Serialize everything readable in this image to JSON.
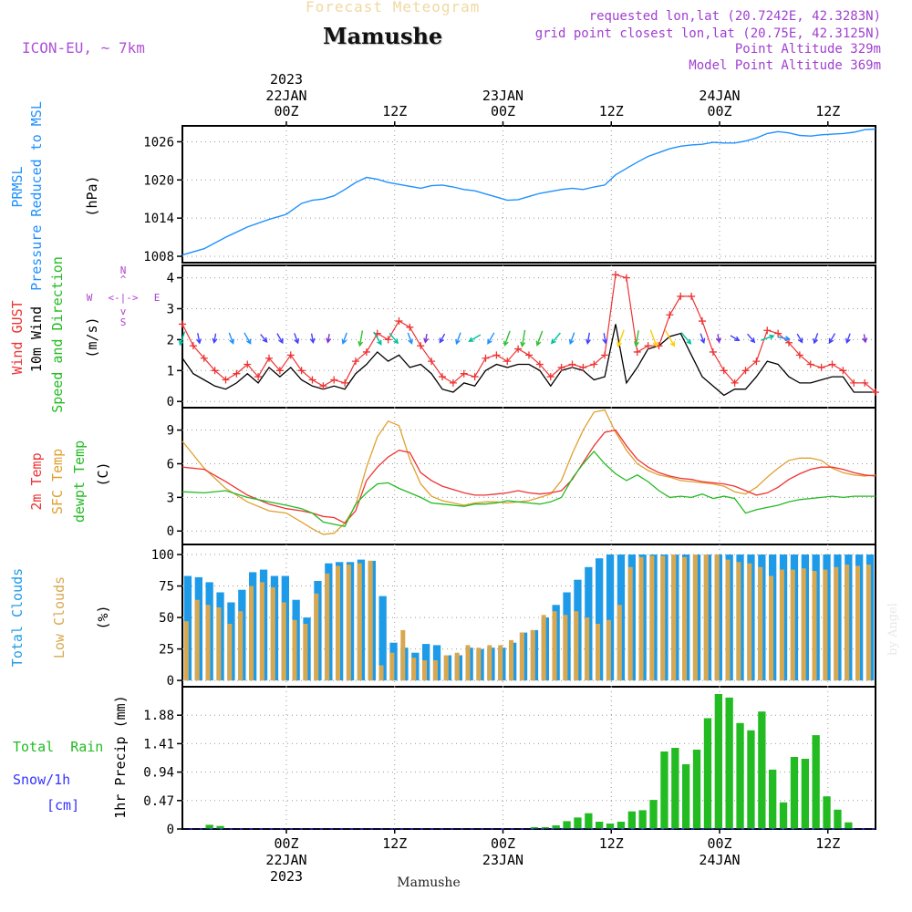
{
  "header": {
    "subtitle": "Forecast Meteogram",
    "location": "Mamushe",
    "model": "ICON-EU, ~ 7km",
    "requested": "requested lon,lat (20.7242E, 42.3283N)",
    "grid_point": "grid point closest lon,lat (20.75E, 42.3125N)",
    "point_altitude": "Point Altitude 329m",
    "model_altitude": "Model Point Altitude 369m",
    "credit": "by Angel"
  },
  "colors": {
    "pressure": "#1e90ff",
    "gust": "#ee3333",
    "wind": "#000000",
    "temp2m": "#ee3333",
    "sfc": "#e0a030",
    "dewpt": "#22bb22",
    "total_clouds": "#1e9be8",
    "low_clouds": "#d8a850",
    "rain": "#22bb22",
    "snow": "#3333ff",
    "purple": "#b040d0"
  },
  "panel_labels": {
    "pressure": [
      "PRMSL",
      "Pressure Reduced to MSL"
    ],
    "pressure_unit": "(hPa)",
    "wind": [
      "Wind GUST",
      "10m Wind",
      "Speed and Direction"
    ],
    "wind_unit": "(m/s)",
    "compass": {
      "n": "N",
      "s": "S",
      "w": "W",
      "e": "E",
      "arrow": "<-|->",
      "v_top": "^",
      "v_mid": "|",
      "v_bot": "v"
    },
    "temp": [
      "2m Temp",
      "SFC Temp",
      "dewpt Temp"
    ],
    "temp_unit": "(C)",
    "clouds": [
      "Total Clouds",
      "Low Clouds"
    ],
    "clouds_unit": "(%)",
    "precip_y": "1hr Precip (mm)",
    "total_rain": "Total  Rain",
    "snow": "Snow/1h",
    "snow_unit": "[cm]"
  },
  "chart_data": {
    "type": "line",
    "title": "Forecast Meteogram",
    "subtitle": "Mamushe",
    "xlabel": "Mamushe",
    "x_unit": "hours from 2023-01-21 14Z",
    "x_range": [
      0,
      64
    ],
    "top_axis": {
      "year": {
        "x": 9.6,
        "label": "2023"
      },
      "dates": [
        {
          "x": 9.6,
          "label": "22JAN"
        },
        {
          "x": 29.6,
          "label": "23JAN"
        },
        {
          "x": 49.6,
          "label": "24JAN"
        }
      ],
      "ticks": [
        {
          "x": 9.6,
          "label": "00Z"
        },
        {
          "x": 19.6,
          "label": "12Z"
        },
        {
          "x": 29.6,
          "label": "00Z"
        },
        {
          "x": 39.6,
          "label": "12Z"
        },
        {
          "x": 49.6,
          "label": "00Z"
        },
        {
          "x": 59.6,
          "label": "12Z"
        }
      ]
    },
    "bottom_axis": {
      "ticks": [
        {
          "x": 9.6,
          "label": "00Z"
        },
        {
          "x": 19.6,
          "label": "12Z"
        },
        {
          "x": 29.6,
          "label": "00Z"
        },
        {
          "x": 39.6,
          "label": "12Z"
        },
        {
          "x": 49.6,
          "label": "00Z"
        },
        {
          "x": 59.6,
          "label": "12Z"
        }
      ],
      "dates": [
        {
          "x": 9.6,
          "label": "22JAN"
        },
        {
          "x": 29.6,
          "label": "23JAN"
        },
        {
          "x": 49.6,
          "label": "24JAN"
        }
      ],
      "year": {
        "x": 9.6,
        "label": "2023"
      }
    },
    "pressure": {
      "name": "PRMSL",
      "ylim": [
        1007,
        1028.5
      ],
      "yticks": [
        1008,
        1014,
        1020,
        1026
      ],
      "x": [
        0,
        2,
        4,
        6,
        8,
        9.6,
        11,
        12,
        13,
        14,
        15,
        16,
        17,
        18,
        19,
        20,
        21,
        22,
        23,
        24,
        25,
        26,
        27,
        28,
        29,
        30,
        31,
        32,
        33,
        34,
        35,
        36,
        37,
        38,
        39,
        40,
        41,
        42,
        43,
        44,
        45,
        46,
        47,
        48,
        49,
        50,
        51,
        52,
        53,
        54,
        55,
        56,
        57,
        58,
        59,
        60,
        61,
        62,
        63,
        64
      ],
      "values": [
        1008.2,
        1009.2,
        1011,
        1012.6,
        1013.8,
        1014.6,
        1016.3,
        1016.8,
        1017,
        1017.5,
        1018.5,
        1019.6,
        1020.4,
        1020.1,
        1019.6,
        1019.3,
        1019,
        1018.7,
        1019.1,
        1019.2,
        1018.9,
        1018.5,
        1018.3,
        1017.8,
        1017.3,
        1016.8,
        1016.9,
        1017.4,
        1017.9,
        1018.2,
        1018.5,
        1018.7,
        1018.5,
        1018.9,
        1019.2,
        1020.8,
        1021.8,
        1022.8,
        1023.7,
        1024.3,
        1024.9,
        1025.3,
        1025.5,
        1025.6,
        1025.9,
        1025.8,
        1025.8,
        1026.1,
        1026.6,
        1027.3,
        1027.6,
        1027.4,
        1027.0,
        1026.9,
        1027.1,
        1027.2,
        1027.3,
        1027.5,
        1027.9,
        1028.0
      ]
    },
    "wind": {
      "ylim": [
        -0.2,
        4.4
      ],
      "yticks": [
        0,
        1,
        2,
        3,
        4
      ],
      "gust": {
        "name": "Wind GUST",
        "x": [
          0,
          1,
          2,
          3,
          4,
          5,
          6,
          7,
          8,
          9,
          10,
          11,
          12,
          13,
          14,
          15,
          16,
          17,
          18,
          19,
          20,
          21,
          22,
          23,
          24,
          25,
          26,
          27,
          28,
          29,
          30,
          31,
          32,
          33,
          34,
          35,
          36,
          37,
          38,
          39,
          40,
          41,
          42,
          43,
          44,
          45,
          46,
          47,
          48,
          49,
          50,
          51,
          52,
          53,
          54,
          55,
          56,
          57,
          58,
          59,
          60,
          61,
          62,
          63,
          64
        ],
        "values": [
          2.5,
          1.8,
          1.4,
          1.0,
          0.7,
          0.9,
          1.2,
          0.8,
          1.4,
          1.0,
          1.5,
          1.0,
          0.7,
          0.5,
          0.7,
          0.6,
          1.3,
          1.6,
          2.2,
          2.0,
          2.6,
          2.4,
          1.8,
          1.3,
          0.8,
          0.6,
          0.9,
          0.8,
          1.4,
          1.5,
          1.3,
          1.7,
          1.5,
          1.2,
          0.8,
          1.1,
          1.2,
          1.1,
          1.2,
          1.5,
          4.1,
          4.0,
          1.6,
          1.8,
          1.8,
          2.8,
          3.4,
          3.4,
          2.6,
          1.6,
          1.0,
          0.6,
          1.0,
          1.3,
          2.3,
          2.2,
          1.9,
          1.5,
          1.2,
          1.1,
          1.2,
          1.0,
          0.6,
          0.6,
          0.3
        ]
      },
      "speed": {
        "name": "10m Wind",
        "x": [
          0,
          1,
          2,
          3,
          4,
          5,
          6,
          7,
          8,
          9,
          10,
          11,
          12,
          13,
          14,
          15,
          16,
          17,
          18,
          19,
          20,
          21,
          22,
          23,
          24,
          25,
          26,
          27,
          28,
          29,
          30,
          31,
          32,
          33,
          34,
          35,
          36,
          37,
          38,
          39,
          40,
          41,
          42,
          43,
          44,
          45,
          46,
          47,
          48,
          49,
          50,
          51,
          52,
          53,
          54,
          55,
          56,
          57,
          58,
          59,
          60,
          61,
          62,
          63,
          64
        ],
        "values": [
          1.4,
          0.9,
          0.7,
          0.5,
          0.4,
          0.6,
          0.9,
          0.6,
          1.1,
          0.8,
          1.1,
          0.7,
          0.5,
          0.4,
          0.5,
          0.4,
          0.9,
          1.2,
          1.6,
          1.3,
          1.5,
          1.1,
          1.2,
          0.9,
          0.4,
          0.3,
          0.6,
          0.5,
          1.0,
          1.2,
          1.1,
          1.2,
          1.2,
          1.0,
          0.5,
          1.0,
          1.1,
          1.0,
          0.7,
          0.8,
          2.5,
          0.6,
          1.1,
          1.7,
          1.8,
          2.1,
          2.2,
          1.5,
          0.8,
          0.5,
          0.2,
          0.4,
          0.4,
          0.8,
          1.3,
          1.2,
          0.8,
          0.6,
          0.6,
          0.7,
          0.8,
          0.8,
          0.3,
          0.3,
          0.3
        ]
      },
      "arrows": {
        "name": "Speed and Direction",
        "x": [
          0,
          1.5,
          3,
          4.5,
          6,
          7.5,
          9,
          10.5,
          12,
          13.5,
          15,
          16.5,
          18,
          19.5,
          21,
          22.5,
          24,
          25.5,
          27,
          28.5,
          30,
          31.5,
          33,
          34.5,
          36,
          37.5,
          39,
          40.5,
          42,
          43.5,
          45,
          46.5,
          48,
          49.5,
          51,
          52.5,
          54,
          55.5,
          57,
          58.5,
          60,
          61.5,
          63
        ],
        "dir_deg": [
          20,
          350,
          10,
          340,
          330,
          320,
          330,
          340,
          350,
          10,
          20,
          10,
          330,
          320,
          340,
          10,
          30,
          20,
          60,
          30,
          20,
          10,
          20,
          40,
          20,
          10,
          350,
          20,
          10,
          340,
          330,
          320,
          340,
          350,
          300,
          320,
          250,
          280,
          330,
          20,
          30,
          20,
          350
        ],
        "speed": [
          1.4,
          0.7,
          0.5,
          0.9,
          1.1,
          0.6,
          0.8,
          0.7,
          0.5,
          0.4,
          0.9,
          1.6,
          1.5,
          1.2,
          0.9,
          0.4,
          0.6,
          1.0,
          1.2,
          1.1,
          1.6,
          1.8,
          1.6,
          1.3,
          1.0,
          0.8,
          0.7,
          2.0,
          1.7,
          2.0,
          2.1,
          1.5,
          0.6,
          0.3,
          0.6,
          0.8,
          1.3,
          1.0,
          0.6,
          0.7,
          0.8,
          0.6,
          0.3
        ]
      }
    },
    "temperature": {
      "ylim": [
        -1.2,
        11
      ],
      "yticks": [
        0,
        3,
        6,
        9
      ],
      "x": [
        0,
        2,
        4,
        6,
        8,
        9.6,
        11,
        12,
        13,
        14,
        15,
        16,
        17,
        18,
        19,
        20,
        21,
        22,
        23,
        24,
        25,
        26,
        27,
        28,
        29,
        30,
        31,
        32,
        33,
        34,
        35,
        36,
        37,
        38,
        39,
        40,
        41,
        42,
        43,
        44,
        45,
        46,
        47,
        48,
        49,
        50,
        51,
        52,
        53,
        54,
        55,
        56,
        57,
        58,
        59,
        60,
        61,
        62,
        63,
        64
      ],
      "temp2m": [
        5.7,
        5.5,
        4.4,
        3.2,
        2.4,
        2.0,
        1.8,
        1.6,
        1.3,
        1.2,
        0.7,
        1.8,
        4.5,
        5.7,
        6.6,
        7.2,
        7.0,
        5.2,
        4.5,
        4.0,
        3.7,
        3.4,
        3.2,
        3.2,
        3.3,
        3.4,
        3.6,
        3.4,
        3.3,
        3.4,
        3.6,
        4.6,
        6.1,
        7.6,
        8.8,
        9.0,
        7.6,
        6.4,
        5.7,
        5.2,
        4.9,
        4.7,
        4.6,
        4.4,
        4.3,
        4.2,
        4.0,
        3.6,
        3.2,
        3.4,
        3.9,
        4.6,
        5.1,
        5.5,
        5.7,
        5.7,
        5.5,
        5.2,
        5.0,
        4.9
      ],
      "sfc": [
        8.0,
        5.6,
        3.8,
        2.6,
        1.8,
        1.6,
        0.8,
        0.2,
        -0.3,
        -0.2,
        0.7,
        2.3,
        5.7,
        8.4,
        9.8,
        9.4,
        6.4,
        4.2,
        3.1,
        2.7,
        2.5,
        2.3,
        2.5,
        2.6,
        2.6,
        2.5,
        2.6,
        2.7,
        3.0,
        3.3,
        4.5,
        6.9,
        9.0,
        10.6,
        10.8,
        8.8,
        7.2,
        6.0,
        5.4,
        5.0,
        4.8,
        4.5,
        4.4,
        4.3,
        4.2,
        4.0,
        3.5,
        3.3,
        3.9,
        4.8,
        5.6,
        6.3,
        6.5,
        6.5,
        6.3,
        5.6,
        5.2,
        5.0,
        4.9,
        5.0
      ],
      "dewpt": [
        3.5,
        3.4,
        3.6,
        3.0,
        2.6,
        2.3,
        2.0,
        1.6,
        0.8,
        0.6,
        0.4,
        2.4,
        3.4,
        4.2,
        4.3,
        3.8,
        3.4,
        3.0,
        2.5,
        2.4,
        2.3,
        2.2,
        2.4,
        2.4,
        2.5,
        2.7,
        2.6,
        2.5,
        2.4,
        2.6,
        3.0,
        4.7,
        6.0,
        7.1,
        6.0,
        5.1,
        4.5,
        5.0,
        4.4,
        3.6,
        3.0,
        3.1,
        3.0,
        3.3,
        2.9,
        3.1,
        2.9,
        1.6,
        1.9,
        2.1,
        2.3,
        2.6,
        2.8,
        2.9,
        3.0,
        3.1,
        3.0,
        3.1,
        3.1,
        3.1
      ]
    },
    "clouds": {
      "ylim": [
        -5,
        108
      ],
      "yticks": [
        0,
        25,
        50,
        75,
        100
      ],
      "x": [
        0,
        1,
        2,
        3,
        4,
        5,
        6,
        7,
        8,
        9,
        10,
        11,
        12,
        13,
        14,
        15,
        16,
        17,
        18,
        19,
        20,
        21,
        22,
        23,
        24,
        25,
        26,
        27,
        28,
        29,
        30,
        31,
        32,
        33,
        34,
        35,
        36,
        37,
        38,
        39,
        40,
        41,
        42,
        43,
        44,
        45,
        46,
        47,
        48,
        49,
        50,
        51,
        52,
        53,
        54,
        55,
        56,
        57,
        58,
        59,
        60,
        61,
        62,
        63,
        64
      ],
      "total": [
        83,
        82,
        78,
        70,
        62,
        72,
        86,
        88,
        83,
        83,
        64,
        50,
        79,
        93,
        94,
        94,
        96,
        95,
        67,
        30,
        26,
        22,
        29,
        28,
        20,
        20,
        26,
        25,
        26,
        26,
        30,
        38,
        40,
        50,
        60,
        70,
        80,
        90,
        97,
        100,
        100,
        100,
        100,
        100,
        100,
        100,
        100,
        100,
        100,
        100,
        100,
        100,
        100,
        100,
        100,
        100,
        100,
        100,
        100,
        100,
        100,
        100,
        100,
        100,
        96
      ],
      "low": [
        47,
        64,
        60,
        58,
        45,
        55,
        75,
        78,
        74,
        62,
        48,
        45,
        69,
        85,
        91,
        92,
        93,
        95,
        12,
        22,
        40,
        18,
        16,
        16,
        20,
        22,
        28,
        26,
        28,
        28,
        32,
        38,
        40,
        52,
        55,
        52,
        55,
        50,
        45,
        48,
        60,
        90,
        98,
        99,
        99,
        100,
        98,
        100,
        100,
        100,
        96,
        94,
        93,
        90,
        83,
        88,
        88,
        89,
        87,
        88,
        90,
        92,
        91,
        92,
        88
      ]
    },
    "precip": {
      "ylim": [
        0,
        2.35
      ],
      "yticks": [
        0,
        0.47,
        0.94,
        1.41,
        1.88
      ],
      "ytick_labels": [
        "0",
        "0.47",
        "0.94",
        "1.41",
        "1.88"
      ],
      "x": [
        0,
        1,
        2,
        3,
        4,
        5,
        6,
        7,
        8,
        9,
        10,
        11,
        12,
        13,
        14,
        15,
        16,
        17,
        18,
        19,
        20,
        21,
        22,
        23,
        24,
        25,
        26,
        27,
        28,
        29,
        30,
        31,
        32,
        33,
        34,
        35,
        36,
        37,
        38,
        39,
        40,
        41,
        42,
        43,
        44,
        45,
        46,
        47,
        48,
        49,
        50,
        51,
        52,
        53,
        54,
        55,
        56,
        57,
        58,
        59,
        60,
        61,
        62,
        63,
        64
      ],
      "rain": [
        0,
        0,
        0.07,
        0.05,
        0,
        0,
        0,
        0,
        0,
        0,
        0,
        0,
        0,
        0,
        0,
        0,
        0,
        0,
        0,
        0,
        0,
        0,
        0,
        0,
        0,
        0,
        0,
        0,
        0,
        0,
        0,
        0,
        0.03,
        0.03,
        0.06,
        0.13,
        0.19,
        0.26,
        0.12,
        0.09,
        0.12,
        0.29,
        0.31,
        0.48,
        1.28,
        1.34,
        1.07,
        1.31,
        1.83,
        2.23,
        2.17,
        1.75,
        1.63,
        1.94,
        0.98,
        0.44,
        1.19,
        1.16,
        1.55,
        0.54,
        0.32,
        0.11,
        0,
        0,
        0
      ],
      "snow": [
        0,
        0,
        0,
        0,
        0,
        0,
        0,
        0,
        0,
        0,
        0,
        0,
        0,
        0,
        0,
        0,
        0,
        0,
        0,
        0,
        0,
        0,
        0,
        0,
        0,
        0,
        0,
        0,
        0,
        0,
        0,
        0,
        0,
        0,
        0,
        0,
        0,
        0,
        0,
        0,
        0,
        0,
        0,
        0,
        0,
        0,
        0,
        0,
        0,
        0,
        0,
        0,
        0,
        0,
        0,
        0,
        0,
        0,
        0,
        0,
        0,
        0,
        0,
        0,
        0
      ]
    }
  }
}
